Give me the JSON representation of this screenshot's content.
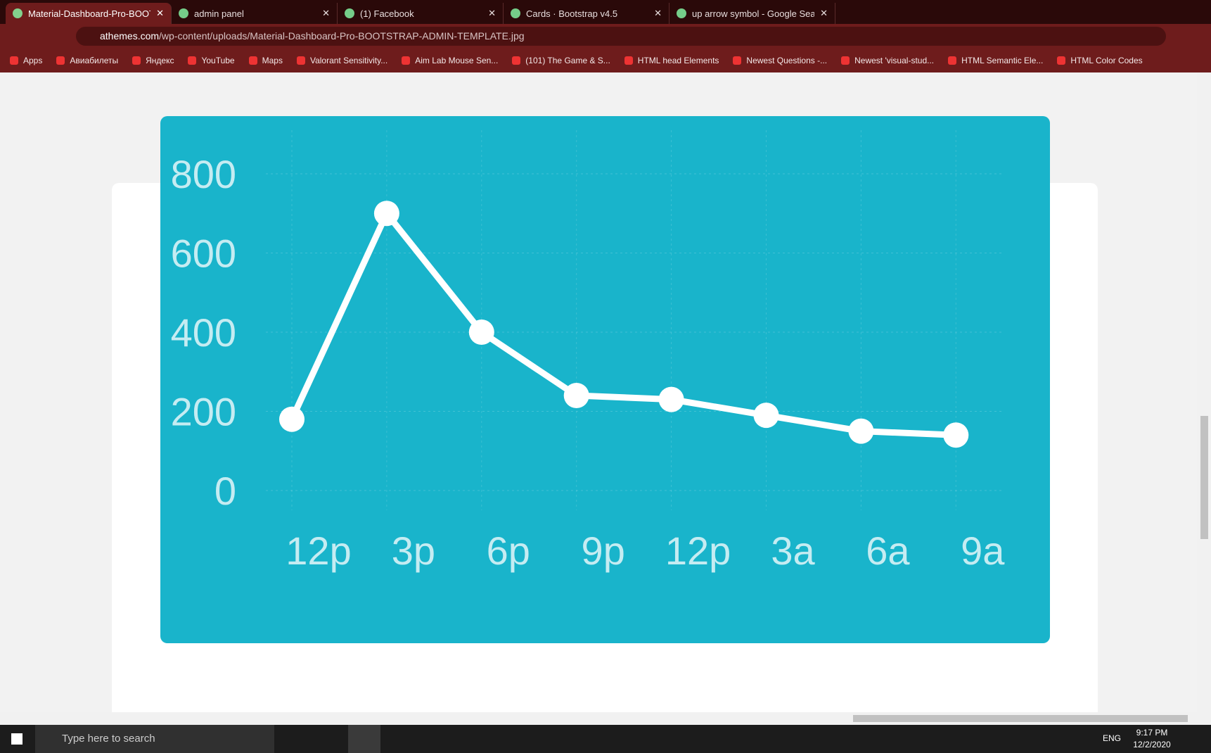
{
  "browser": {
    "tabs": [
      "Material-Dashboard-Pro-BOOTST",
      "admin panel",
      "(1) Facebook",
      "Cards · Bootstrap v4.5",
      "up arrow symbol - Google Search"
    ],
    "url_host": "athemes.com",
    "url_path": "/wp-content/uploads/Material-Dashboard-Pro-BOOTSTRAP-ADMIN-TEMPLATE.jpg",
    "bookmarks": [
      "Apps",
      "Авиабилеты",
      "Яндекс",
      "YouTube",
      "Maps",
      "Valorant Sensitivity...",
      "Aim Lab Mouse Sen...",
      "(101) The Game & S...",
      "HTML head Elements",
      "Newest Questions -...",
      "Newest 'visual-stud...",
      "HTML Semantic Ele...",
      "HTML Color Codes"
    ]
  },
  "chart_data": {
    "type": "line",
    "categories": [
      "12p",
      "3p",
      "6p",
      "9p",
      "12p",
      "3a",
      "6a",
      "9a"
    ],
    "values": [
      180,
      700,
      400,
      240,
      230,
      190,
      150,
      140
    ],
    "color": "#ffffff",
    "ylim": [
      0,
      800
    ],
    "yticks": [
      0,
      200,
      400,
      600,
      800
    ],
    "grid": true
  },
  "taskbar": {
    "search": "Type here to search",
    "language": "ENG",
    "time": "9:17 PM",
    "date": "12/2/2020"
  }
}
